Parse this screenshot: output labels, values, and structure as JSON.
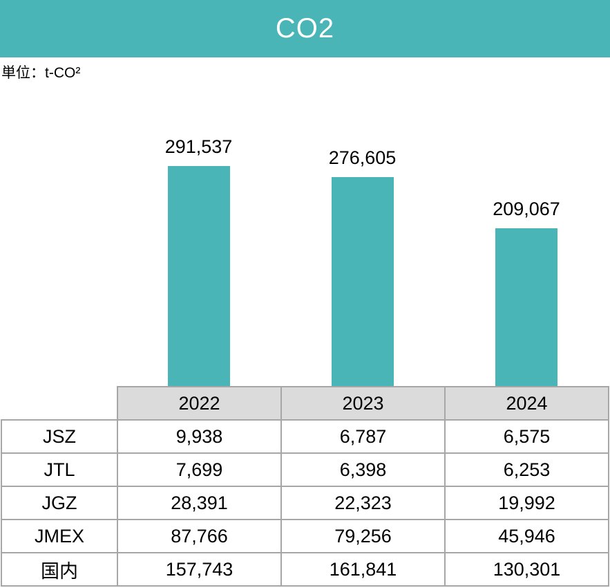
{
  "header": {
    "title": "CO2",
    "background_color": "#4AB5B6",
    "text_color": "#ffffff"
  },
  "unit_label": "単位：t-CO²",
  "chart_data": {
    "type": "bar",
    "title": "CO2",
    "categories": [
      "2022",
      "2023",
      "2024"
    ],
    "values": [
      291537,
      276605,
      209067
    ],
    "value_labels": [
      "291,537",
      "276,605",
      "209,067"
    ],
    "bar_color": "#4AB5B6",
    "ylim": [
      0,
      291537
    ],
    "grid": false,
    "legend": false,
    "table": {
      "corner_label": "",
      "column_headers": [
        "2022",
        "2023",
        "2024"
      ],
      "header_background": "#DBDBDB",
      "border_color": "#A6A6A6",
      "rows": [
        {
          "label": "JSZ",
          "values": [
            "9,938",
            "6,787",
            "6,575"
          ],
          "numeric": [
            9938,
            6787,
            6575
          ]
        },
        {
          "label": "JTL",
          "values": [
            "7,699",
            "6,398",
            "6,253"
          ],
          "numeric": [
            7699,
            6398,
            6253
          ]
        },
        {
          "label": "JGZ",
          "values": [
            "28,391",
            "22,323",
            "19,992"
          ],
          "numeric": [
            28391,
            22323,
            19992
          ]
        },
        {
          "label": "JMEX",
          "values": [
            "87,766",
            "79,256",
            "45,946"
          ],
          "numeric": [
            87766,
            79256,
            45946
          ]
        },
        {
          "label": "国内",
          "values": [
            "157,743",
            "161,841",
            "130,301"
          ],
          "numeric": [
            157743,
            161841,
            130301
          ]
        }
      ]
    }
  }
}
